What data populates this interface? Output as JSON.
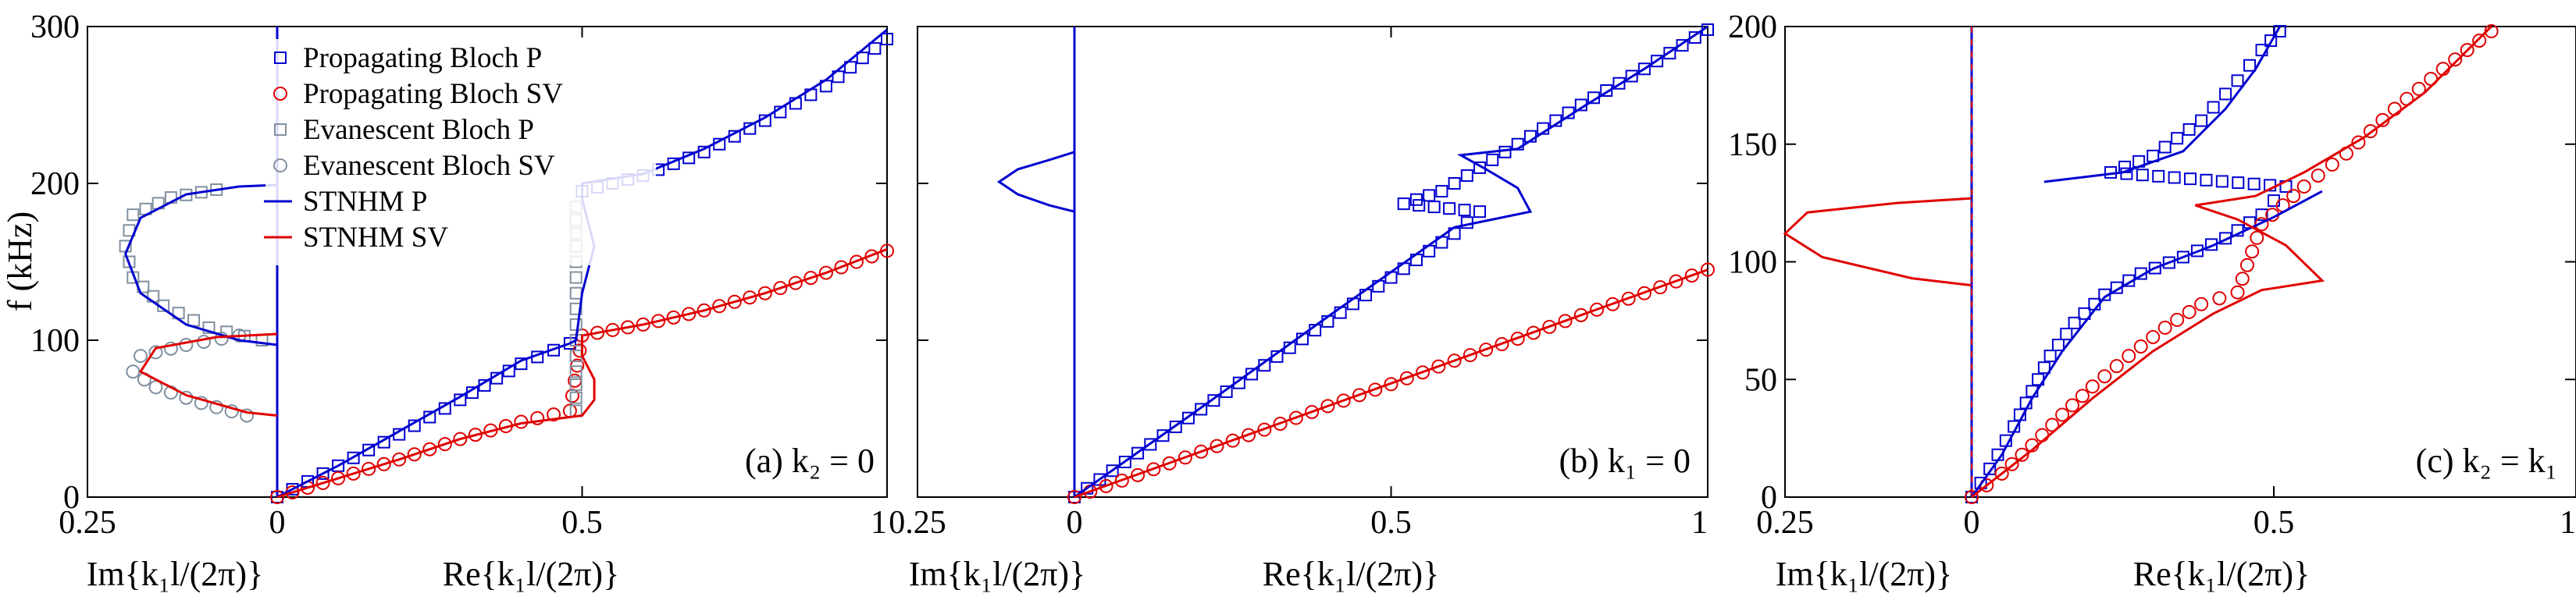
{
  "chart_data": [
    {
      "type": "scatter",
      "annotation": "(a) k₂ = 0",
      "y_label": "f (kHz)",
      "xlabel_im": "Im{k₁l/(2π)}",
      "xlabel_re": "Re{k₁l/(2π)}",
      "xlim_im": [
        0.25,
        0
      ],
      "xlim_re": [
        0,
        1
      ],
      "ylim": [
        0,
        300
      ],
      "x_ticks": [
        "0.25",
        "0",
        "0.5",
        "1"
      ],
      "y_ticks": [
        "0",
        "100",
        "200",
        "300"
      ],
      "legend": [
        {
          "label": "Propagating Bloch P",
          "marker": "square",
          "color": "#0000d0"
        },
        {
          "label": "Propagating Bloch SV",
          "marker": "circle",
          "color": "#e00000"
        },
        {
          "label": "Evanescent Bloch P",
          "marker": "square",
          "color": "#8090a0"
        },
        {
          "label": "Evanescent Bloch SV",
          "marker": "circle",
          "color": "#8090a0"
        },
        {
          "label": "STNHM P",
          "marker": "line",
          "color": "#0000d0"
        },
        {
          "label": "STNHM SV",
          "marker": "line",
          "color": "#e00000"
        }
      ],
      "series": [
        {
          "name": "Propagating Bloch P",
          "points": [
            [
              0,
              0
            ],
            [
              0.1,
              20
            ],
            [
              0.2,
              40
            ],
            [
              0.3,
              62
            ],
            [
              0.4,
              85
            ],
            [
              0.48,
              98
            ],
            [
              0.5,
              195
            ],
            [
              0.6,
              205
            ],
            [
              0.7,
              220
            ],
            [
              0.8,
              240
            ],
            [
              0.9,
              262
            ],
            [
              1.0,
              292
            ]
          ]
        },
        {
          "name": "Propagating Bloch SV",
          "points": [
            [
              0,
              0
            ],
            [
              0.1,
              12
            ],
            [
              0.2,
              24
            ],
            [
              0.3,
              37
            ],
            [
              0.4,
              48
            ],
            [
              0.48,
              55
            ],
            [
              0.5,
              103
            ],
            [
              0.6,
              110
            ],
            [
              0.7,
              119
            ],
            [
              0.8,
              130
            ],
            [
              0.9,
              143
            ],
            [
              1.0,
              157
            ]
          ]
        },
        {
          "name": "Evanescent Bloch P (Im)",
          "points": [
            [
              0.02,
              100
            ],
            [
              0.09,
              108
            ],
            [
              0.15,
              122
            ],
            [
              0.19,
              140
            ],
            [
              0.2,
              160
            ],
            [
              0.19,
              180
            ],
            [
              0.14,
              191
            ],
            [
              0.08,
              196
            ]
          ]
        },
        {
          "name": "Evanescent Bloch SV (Im)",
          "points": [
            [
              0.04,
              52
            ],
            [
              0.1,
              60
            ],
            [
              0.16,
              70
            ],
            [
              0.19,
              80
            ],
            [
              0.18,
              90
            ],
            [
              0.12,
              97
            ],
            [
              0.05,
              103
            ]
          ]
        },
        {
          "name": "Evanescent Bloch P (Re)",
          "points": [
            [
              0.49,
              55
            ],
            [
              0.49,
              80
            ],
            [
              0.49,
              100
            ],
            [
              0.49,
              130
            ],
            [
              0.49,
              160
            ],
            [
              0.49,
              185
            ]
          ]
        },
        {
          "name": "STNHM P (Im)",
          "points": [
            [
              0,
              97
            ],
            [
              0.05,
              100
            ],
            [
              0.12,
              110
            ],
            [
              0.18,
              130
            ],
            [
              0.2,
              155
            ],
            [
              0.18,
              178
            ],
            [
              0.12,
              193
            ],
            [
              0.05,
              198
            ],
            [
              0,
              199
            ]
          ]
        },
        {
          "name": "STNHM SV (Im)",
          "points": [
            [
              0,
              52
            ],
            [
              0.04,
              54
            ],
            [
              0.12,
              65
            ],
            [
              0.18,
              80
            ],
            [
              0.16,
              95
            ],
            [
              0.08,
              102
            ],
            [
              0,
              104
            ]
          ]
        },
        {
          "name": "STNHM P (Re)",
          "points": [
            [
              0,
              0
            ],
            [
              0.1,
              20
            ],
            [
              0.2,
              42
            ],
            [
              0.3,
              64
            ],
            [
              0.4,
              87
            ],
            [
              0.48,
              98
            ],
            [
              0.49,
              100
            ],
            [
              0.5,
              130
            ],
            [
              0.52,
              160
            ],
            [
              0.5,
              190
            ],
            [
              0.5,
              200
            ],
            [
              0.6,
              206
            ],
            [
              0.7,
              222
            ],
            [
              0.8,
              242
            ],
            [
              0.9,
              266
            ],
            [
              1.0,
              298
            ]
          ]
        },
        {
          "name": "STNHM SV (Re)",
          "points": [
            [
              0,
              0
            ],
            [
              0.1,
              12
            ],
            [
              0.2,
              24
            ],
            [
              0.3,
              37
            ],
            [
              0.4,
              47
            ],
            [
              0.5,
              52
            ],
            [
              0.52,
              62
            ],
            [
              0.52,
              75
            ],
            [
              0.5,
              90
            ],
            [
              0.5,
              103
            ],
            [
              0.6,
              110
            ],
            [
              0.7,
              119
            ],
            [
              0.8,
              130
            ],
            [
              0.9,
              143
            ],
            [
              1.0,
              158
            ]
          ]
        }
      ]
    },
    {
      "type": "scatter",
      "annotation": "(b) k₁ = 0",
      "xlabel_im": "Im{k₁l/(2π)}",
      "xlabel_re": "Re{k₁l/(2π)}",
      "xlim_im": [
        0.25,
        0
      ],
      "xlim_re": [
        0,
        1
      ],
      "ylim": [
        0,
        300
      ],
      "x_ticks": [
        "0.25",
        "0",
        "0.5",
        "1"
      ],
      "series": [
        {
          "name": "Propagating Bloch P",
          "points": [
            [
              0,
              0
            ],
            [
              0.1,
              28
            ],
            [
              0.2,
              56
            ],
            [
              0.3,
              84
            ],
            [
              0.4,
              112
            ],
            [
              0.5,
              140
            ],
            [
              0.6,
              168
            ],
            [
              0.64,
              182
            ],
            [
              0.52,
              187
            ],
            [
              0.58,
              195
            ],
            [
              0.64,
              210
            ],
            [
              0.7,
              225
            ],
            [
              0.8,
              250
            ],
            [
              0.9,
              273
            ],
            [
              1.0,
              298
            ]
          ]
        },
        {
          "name": "Propagating Bloch SV",
          "points": [
            [
              0,
              0
            ],
            [
              0.1,
              14
            ],
            [
              0.2,
              29
            ],
            [
              0.3,
              43
            ],
            [
              0.4,
              58
            ],
            [
              0.5,
              72
            ],
            [
              0.6,
              87
            ],
            [
              0.7,
              101
            ],
            [
              0.8,
              116
            ],
            [
              0.9,
              130
            ],
            [
              1.0,
              145
            ]
          ]
        },
        {
          "name": "STNHM P (Im)",
          "points": [
            [
              0,
              182
            ],
            [
              0.04,
              186
            ],
            [
              0.09,
              193
            ],
            [
              0.12,
              201
            ],
            [
              0.09,
              209
            ],
            [
              0.04,
              215
            ],
            [
              0,
              220
            ]
          ]
        },
        {
          "name": "STNHM P (Re)",
          "points": [
            [
              0,
              0
            ],
            [
              0.2,
              57
            ],
            [
              0.4,
              115
            ],
            [
              0.6,
              172
            ],
            [
              0.72,
              182
            ],
            [
              0.7,
              197
            ],
            [
              0.65,
              209
            ],
            [
              0.61,
              218
            ],
            [
              0.7,
              222
            ],
            [
              0.8,
              248
            ],
            [
              0.9,
              273
            ],
            [
              1.0,
              300
            ]
          ]
        },
        {
          "name": "STNHM SV (Re)",
          "points": [
            [
              0,
              0
            ],
            [
              0.2,
              29
            ],
            [
              0.4,
              58
            ],
            [
              0.6,
              87
            ],
            [
              0.8,
              116
            ],
            [
              1.0,
              145
            ]
          ]
        }
      ]
    },
    {
      "type": "scatter",
      "annotation": "(c) k₂ = k₁",
      "xlabel_im": "Im{k₁l/(2π)}",
      "xlabel_re": "Re{k₁l/(2π)}",
      "xlim_im": [
        0.25,
        0
      ],
      "xlim_re": [
        0,
        1
      ],
      "ylim": [
        0,
        200
      ],
      "x_ticks": [
        "0.25",
        "0",
        "0.5",
        "1"
      ],
      "y_ticks": [
        "0",
        "50",
        "100",
        "150",
        "200"
      ],
      "series": [
        {
          "name": "Propagating Bloch P",
          "points": [
            [
              0,
              0
            ],
            [
              0.03,
              12
            ],
            [
              0.07,
              30
            ],
            [
              0.1,
              45
            ],
            [
              0.13,
              60
            ],
            [
              0.17,
              74
            ],
            [
              0.22,
              86
            ],
            [
              0.28,
              95
            ],
            [
              0.35,
              102
            ],
            [
              0.42,
              110
            ],
            [
              0.48,
              120
            ],
            [
              0.52,
              132
            ],
            [
              0.23,
              138
            ],
            [
              0.3,
              145
            ],
            [
              0.38,
              160
            ],
            [
              0.44,
              177
            ],
            [
              0.48,
              190
            ],
            [
              0.51,
              198
            ]
          ]
        },
        {
          "name": "Propagating Bloch SV",
          "points": [
            [
              0,
              0
            ],
            [
              0.05,
              10
            ],
            [
              0.1,
              22
            ],
            [
              0.15,
              35
            ],
            [
              0.2,
              47
            ],
            [
              0.26,
              60
            ],
            [
              0.32,
              72
            ],
            [
              0.38,
              82
            ],
            [
              0.44,
              87
            ],
            [
              0.48,
              116
            ],
            [
              0.55,
              132
            ],
            [
              0.62,
              146
            ],
            [
              0.7,
              165
            ],
            [
              0.78,
              182
            ],
            [
              0.86,
              198
            ]
          ]
        },
        {
          "name": "STNHM P (Re)",
          "points": [
            [
              0,
              0
            ],
            [
              0.05,
              18
            ],
            [
              0.1,
              42
            ],
            [
              0.15,
              62
            ],
            [
              0.22,
              85
            ],
            [
              0.3,
              97
            ],
            [
              0.4,
              107
            ],
            [
              0.5,
              119
            ],
            [
              0.58,
              130
            ]
          ]
        },
        {
          "name": "STNHM P (Re) upper",
          "points": [
            [
              0.12,
              134
            ],
            [
              0.25,
              138
            ],
            [
              0.35,
              147
            ],
            [
              0.42,
              165
            ],
            [
              0.47,
              182
            ],
            [
              0.51,
              200
            ]
          ]
        },
        {
          "name": "STNHM SV (Im)",
          "points": [
            [
              0,
              90
            ],
            [
              0.08,
              93
            ],
            [
              0.2,
              102
            ],
            [
              0.25,
              112
            ],
            [
              0.22,
              121
            ],
            [
              0.1,
              125
            ],
            [
              0,
              127
            ]
          ]
        },
        {
          "name": "STNHM SV (Re)",
          "points": [
            [
              0,
              0
            ],
            [
              0.1,
              20
            ],
            [
              0.2,
              42
            ],
            [
              0.3,
              62
            ],
            [
              0.4,
              78
            ],
            [
              0.48,
              88
            ],
            [
              0.58,
              92
            ],
            [
              0.52,
              107
            ],
            [
              0.44,
              118
            ],
            [
              0.37,
              124
            ],
            [
              0.47,
              128
            ],
            [
              0.55,
              138
            ],
            [
              0.65,
              153
            ],
            [
              0.75,
              172
            ],
            [
              0.86,
              200
            ]
          ]
        }
      ]
    }
  ],
  "colors": {
    "blue": "#0000d0",
    "red": "#e00000",
    "gray": "#8090a0"
  }
}
